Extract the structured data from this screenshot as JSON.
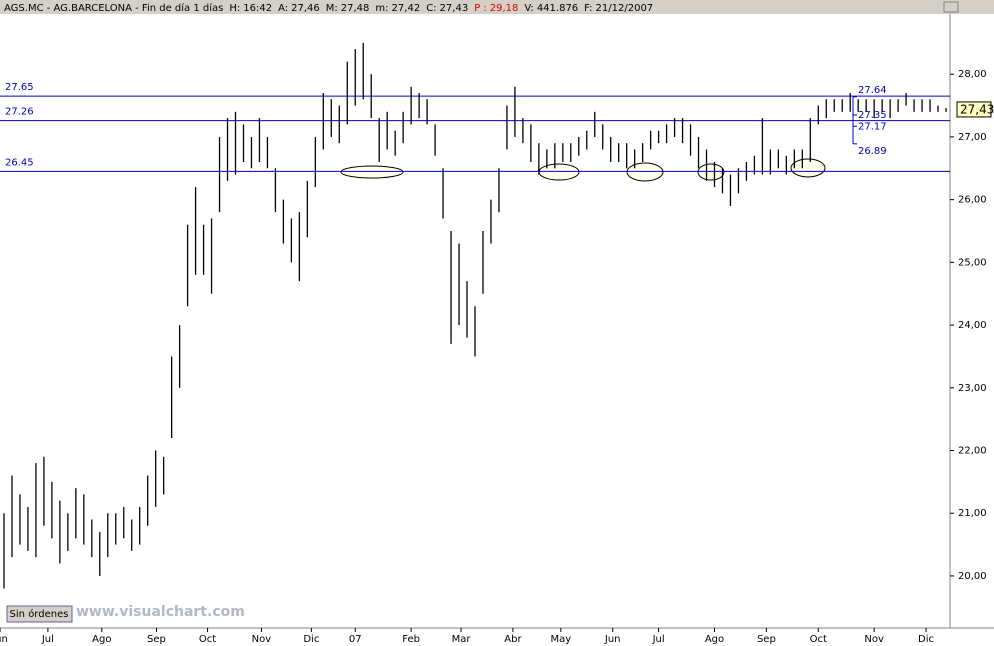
{
  "header": {
    "symbol": "AGS.MC - AG.BARCELONA - Fin de día 1 días",
    "fields": [
      {
        "label": "H:",
        "value": "16:42"
      },
      {
        "label": "A:",
        "value": "27,46"
      },
      {
        "label": "M:",
        "value": "27,48"
      },
      {
        "label": "m:",
        "value": "27,42"
      },
      {
        "label": "C:",
        "value": "27,43"
      },
      {
        "label": "P :",
        "value": "29,18",
        "color": "#e00000"
      },
      {
        "label": "V:",
        "value": "441.876"
      },
      {
        "label": "F:",
        "value": "21/12/2007"
      }
    ]
  },
  "chart_data": {
    "type": "range-bar",
    "color": "#000000",
    "line_color": "#0000c0",
    "low": [
      19.8,
      20.3,
      20.5,
      20.4,
      20.3,
      20.8,
      20.6,
      20.2,
      20.4,
      20.6,
      20.5,
      20.3,
      20.0,
      20.3,
      20.5,
      20.6,
      20.4,
      20.5,
      20.8,
      21.1,
      21.3,
      22.2,
      23.0,
      24.3,
      24.8,
      24.8,
      24.5,
      25.8,
      26.3,
      26.4,
      26.6,
      26.5,
      26.6,
      26.5,
      25.8,
      25.3,
      25.0,
      24.7,
      25.4,
      26.2,
      26.8,
      27.0,
      26.9,
      27.2,
      27.5,
      27.6,
      27.3,
      26.6,
      26.8,
      26.7,
      26.9,
      27.2,
      27.3,
      27.2,
      26.7,
      25.7,
      23.7,
      24.0,
      23.8,
      23.5,
      24.5,
      25.3,
      25.8,
      26.8,
      27.0,
      26.9,
      26.6,
      26.4,
      26.5,
      26.5,
      26.6,
      26.6,
      26.7,
      26.8,
      27.0,
      26.8,
      26.6,
      26.6,
      26.5,
      26.5,
      26.6,
      26.8,
      26.9,
      26.9,
      27.0,
      26.9,
      26.7,
      26.5,
      26.3,
      26.2,
      26.1,
      25.9,
      26.1,
      26.3,
      26.4,
      26.4,
      26.4,
      26.5,
      26.4,
      26.5,
      26.5,
      26.6,
      27.2,
      27.3,
      27.4,
      27.4,
      27.4,
      27.4,
      27.4,
      27.3,
      27.4,
      27.3,
      27.4,
      27.5,
      27.4,
      27.4,
      27.4,
      27.4,
      27.4
    ],
    "high": [
      21.0,
      21.6,
      21.3,
      21.1,
      21.8,
      21.9,
      21.5,
      21.2,
      21.0,
      21.4,
      21.3,
      20.9,
      20.7,
      21.0,
      21.0,
      21.1,
      20.9,
      21.1,
      21.6,
      22.0,
      21.9,
      23.5,
      24.0,
      25.6,
      26.2,
      25.6,
      25.7,
      27.0,
      27.3,
      27.4,
      27.2,
      27.0,
      27.3,
      27.0,
      26.5,
      26.0,
      25.7,
      25.8,
      26.3,
      27.0,
      27.7,
      27.6,
      27.5,
      28.2,
      28.4,
      28.5,
      28.0,
      27.3,
      27.4,
      27.1,
      27.4,
      27.8,
      27.7,
      27.6,
      27.2,
      26.5,
      25.5,
      25.3,
      24.7,
      24.3,
      25.5,
      26.0,
      26.5,
      27.5,
      27.8,
      27.3,
      27.2,
      26.9,
      26.8,
      26.9,
      26.9,
      26.9,
      27.0,
      27.1,
      27.4,
      27.2,
      27.0,
      26.9,
      26.9,
      26.8,
      26.9,
      27.1,
      27.1,
      27.2,
      27.3,
      27.3,
      27.2,
      27.0,
      26.8,
      26.6,
      26.5,
      26.4,
      26.5,
      26.6,
      26.7,
      27.3,
      26.8,
      26.8,
      26.7,
      26.8,
      26.8,
      27.3,
      27.5,
      27.6,
      27.6,
      27.6,
      27.7,
      27.6,
      27.6,
      27.6,
      27.6,
      27.6,
      27.6,
      27.7,
      27.6,
      27.6,
      27.6,
      27.5,
      27.46
    ],
    "xlim": [
      0,
      119
    ],
    "ylim": [
      19.17,
      28.96
    ],
    "xticks": [
      {
        "value": 0,
        "label": "Jun"
      },
      {
        "value": 6,
        "label": "Jul"
      },
      {
        "value": 12.75,
        "label": "Ago"
      },
      {
        "value": 19.6,
        "label": "Sep"
      },
      {
        "value": 26,
        "label": "Oct"
      },
      {
        "value": 32.75,
        "label": "Nov"
      },
      {
        "value": 39,
        "label": "Dic"
      },
      {
        "value": 44.5,
        "label": "07"
      },
      {
        "value": 51.5,
        "label": "Feb"
      },
      {
        "value": 57.75,
        "label": "Mar"
      },
      {
        "value": 64.25,
        "label": "Abr"
      },
      {
        "value": 70.25,
        "label": "May"
      },
      {
        "value": 76.75,
        "label": "Jun"
      },
      {
        "value": 82.5,
        "label": "Jul"
      },
      {
        "value": 89.5,
        "label": "Ago"
      },
      {
        "value": 96,
        "label": "Sep"
      },
      {
        "value": 102.5,
        "label": "Oct"
      },
      {
        "value": 109.5,
        "label": "Nov"
      },
      {
        "value": 116,
        "label": "Dic"
      }
    ],
    "yticks": [
      {
        "value": 20,
        "label": "20,00"
      },
      {
        "value": 21,
        "label": "21,00"
      },
      {
        "value": 22,
        "label": "22,00"
      },
      {
        "value": 23,
        "label": "23,00"
      },
      {
        "value": 24,
        "label": "24,00"
      },
      {
        "value": 25,
        "label": "25,00"
      },
      {
        "value": 26,
        "label": "26,00"
      },
      {
        "value": 27,
        "label": "27,00"
      },
      {
        "value": 28,
        "label": "28,00"
      }
    ],
    "hlines": [
      27.65,
      27.26,
      26.45
    ],
    "levels": [
      27.64,
      27.35,
      27.17,
      26.89
    ],
    "last": {
      "value": 27.43,
      "label": "27,43"
    }
  },
  "footer": {
    "button": "Sin órdenes",
    "watermark": "www.visualchart.com"
  }
}
